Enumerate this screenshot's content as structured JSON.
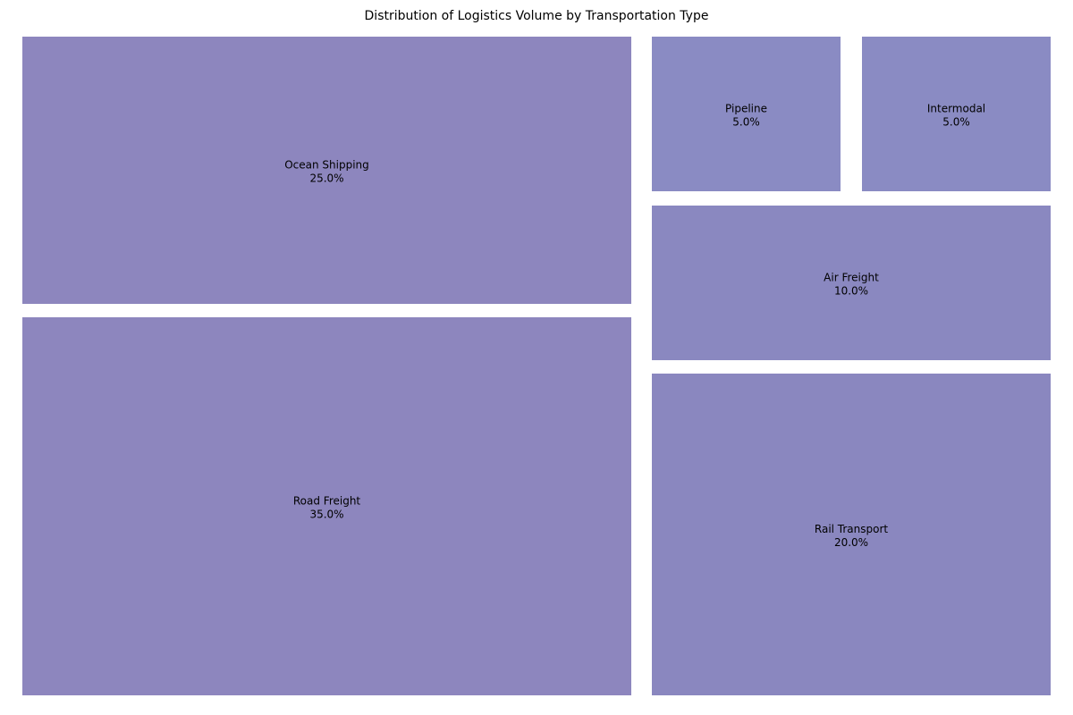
{
  "chart_data": {
    "type": "treemap",
    "title": "Distribution of Logistics Volume by Transportation Type",
    "items": [
      {
        "name": "Ocean Shipping",
        "value": 25.0,
        "label_value": "25.0%",
        "color": "#8d86be"
      },
      {
        "name": "Road Freight",
        "value": 35.0,
        "label_value": "35.0%",
        "color": "#8d86be"
      },
      {
        "name": "Pipeline",
        "value": 5.0,
        "label_value": "5.0%",
        "color": "#8a8bc3"
      },
      {
        "name": "Intermodal",
        "value": 5.0,
        "label_value": "5.0%",
        "color": "#8a8bc3"
      },
      {
        "name": "Air Freight",
        "value": 10.0,
        "label_value": "10.0%",
        "color": "#8a88c0"
      },
      {
        "name": "Rail Transport",
        "value": 20.0,
        "label_value": "20.0%",
        "color": "#8a87bf"
      }
    ]
  }
}
